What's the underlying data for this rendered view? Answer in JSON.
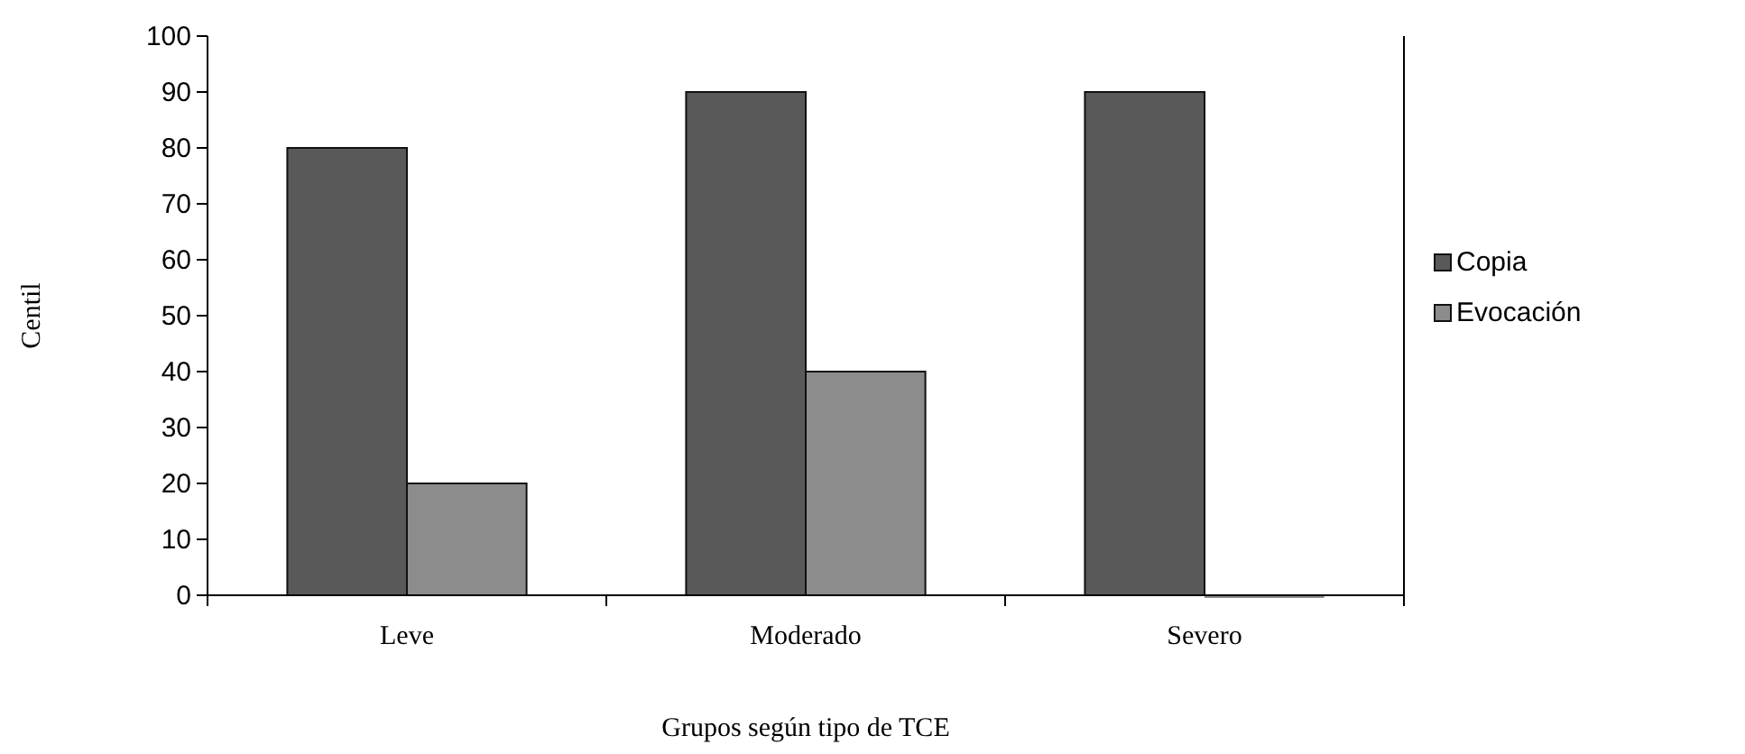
{
  "chart_data": {
    "type": "bar",
    "xlabel": "Grupos según tipo de TCE",
    "ylabel": "Centil",
    "categories": [
      "Leve",
      "Moderado",
      "Severo"
    ],
    "series": [
      {
        "name": "Copia",
        "color": "#595959",
        "values": [
          80,
          90,
          90
        ]
      },
      {
        "name": "Evocación",
        "color": "#8c8c8c",
        "values": [
          20,
          40,
          0
        ]
      }
    ],
    "ylim": [
      0,
      100
    ],
    "yticks": [
      0,
      10,
      20,
      30,
      40,
      50,
      60,
      70,
      80,
      90,
      100
    ],
    "grid": false,
    "legend": "right"
  }
}
